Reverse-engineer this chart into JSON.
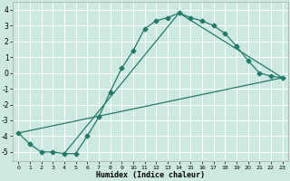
{
  "xlabel": "Humidex (Indice chaleur)",
  "bg_color": "#cde8e0",
  "line_color": "#217a6a",
  "grid_color": "#ffffff",
  "xlim": [
    -0.5,
    23.5
  ],
  "ylim": [
    -5.6,
    4.5
  ],
  "xticks": [
    0,
    1,
    2,
    3,
    4,
    5,
    6,
    7,
    8,
    9,
    10,
    11,
    12,
    13,
    14,
    15,
    16,
    17,
    18,
    19,
    20,
    21,
    22,
    23
  ],
  "yticks": [
    -5,
    -4,
    -3,
    -2,
    -1,
    0,
    1,
    2,
    3,
    4
  ],
  "line1_x": [
    0,
    1,
    2,
    3,
    4,
    5,
    6,
    7,
    8,
    9,
    10,
    11,
    12,
    13,
    14,
    15,
    16,
    17,
    18,
    19,
    20,
    21,
    22,
    23
  ],
  "line1_y": [
    -3.8,
    -4.5,
    -5.0,
    -5.0,
    -5.1,
    -5.1,
    -4.0,
    -2.8,
    -1.2,
    0.3,
    1.4,
    2.8,
    3.3,
    3.5,
    3.8,
    3.5,
    3.3,
    3.0,
    2.5,
    1.7,
    0.8,
    0.0,
    -0.2,
    -0.3
  ],
  "line2_x": [
    0,
    23
  ],
  "line2_y": [
    -3.8,
    -0.3
  ],
  "line3_x": [
    4,
    14,
    23
  ],
  "line3_y": [
    -5.1,
    3.8,
    -0.3
  ]
}
